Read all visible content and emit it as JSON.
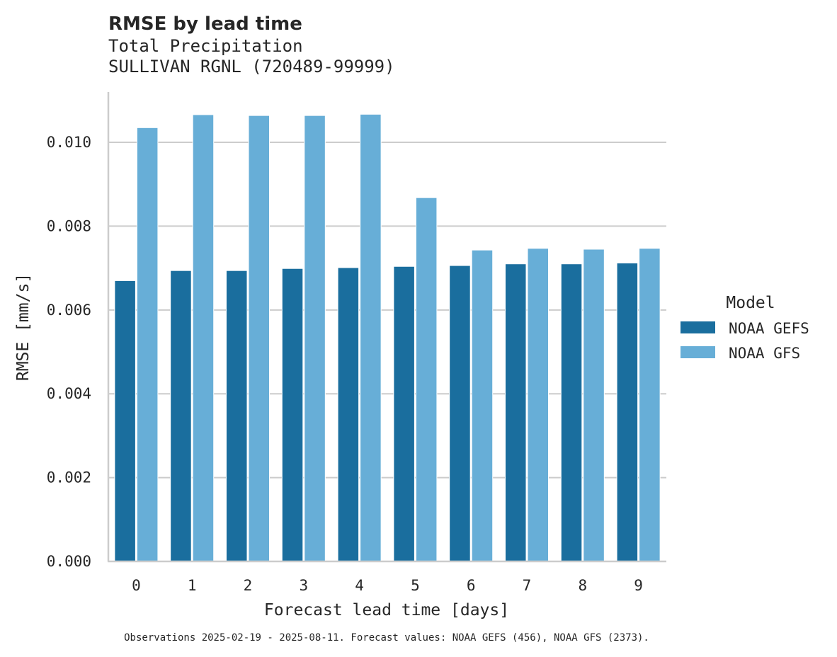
{
  "chart_data": {
    "type": "bar",
    "title": "RMSE by lead time",
    "subtitle_lines": [
      "Total Precipitation",
      "SULLIVAN RGNL (720489-99999)"
    ],
    "xlabel": "Forecast lead time [days]",
    "ylabel": "RMSE [mm/s]",
    "categories": [
      "0",
      "1",
      "2",
      "3",
      "4",
      "5",
      "6",
      "7",
      "8",
      "9"
    ],
    "series": [
      {
        "name": "NOAA GEFS",
        "color": "#1a6e9e",
        "values": [
          0.0067,
          0.00694,
          0.00694,
          0.00699,
          0.00701,
          0.00704,
          0.00706,
          0.0071,
          0.0071,
          0.00712
        ]
      },
      {
        "name": "NOAA GFS",
        "color": "#67aed7",
        "values": [
          0.01035,
          0.01066,
          0.01064,
          0.01064,
          0.01067,
          0.00868,
          0.00743,
          0.00747,
          0.00745,
          0.00747
        ]
      }
    ],
    "ylim": [
      0,
      0.0112
    ],
    "yticks": [
      0,
      0.002,
      0.004,
      0.006,
      0.008,
      0.01
    ],
    "ytick_labels": [
      "0.000",
      "0.002",
      "0.004",
      "0.006",
      "0.008",
      "0.010"
    ],
    "grid": true,
    "legend": {
      "title": "Model",
      "position": "right"
    },
    "footnote": "Observations 2025-02-19 - 2025-08-11. Forecast values: NOAA GEFS (456), NOAA GFS (2373)."
  },
  "colors": {
    "axis": "#cccccc",
    "grid": "#cccccc",
    "text": "#262626"
  }
}
